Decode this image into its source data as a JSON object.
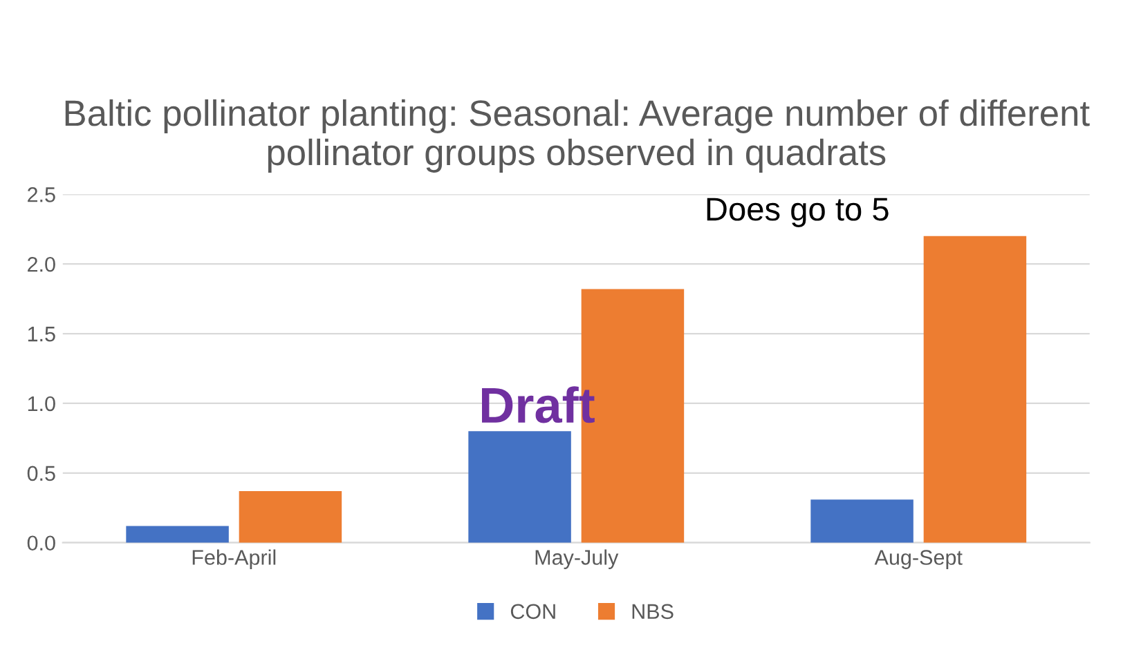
{
  "chart_data": {
    "type": "bar",
    "title": "Baltic pollinator planting: Seasonal: Average number of different pollinator groups observed in quadrats",
    "categories": [
      "Feb-April",
      "May-July",
      "Aug-Sept"
    ],
    "series": [
      {
        "name": "CON",
        "color": "#4472c4",
        "values": [
          0.12,
          0.8,
          0.31
        ]
      },
      {
        "name": "NBS",
        "color": "#ed7d31",
        "values": [
          0.37,
          1.82,
          2.2
        ]
      }
    ],
    "ylim": [
      0,
      2.5
    ],
    "yticks": [
      {
        "value": 0,
        "label": "0.0"
      },
      {
        "value": 0.5,
        "label": "0.5"
      },
      {
        "value": 1,
        "label": "1.0"
      },
      {
        "value": 1.5,
        "label": "1.5"
      },
      {
        "value": 2,
        "label": "2.0"
      },
      {
        "value": 2.5,
        "label": "2.5"
      }
    ],
    "grid": "y",
    "legend": "bottom",
    "annotations": [
      "Draft",
      "Does go to 5"
    ]
  }
}
